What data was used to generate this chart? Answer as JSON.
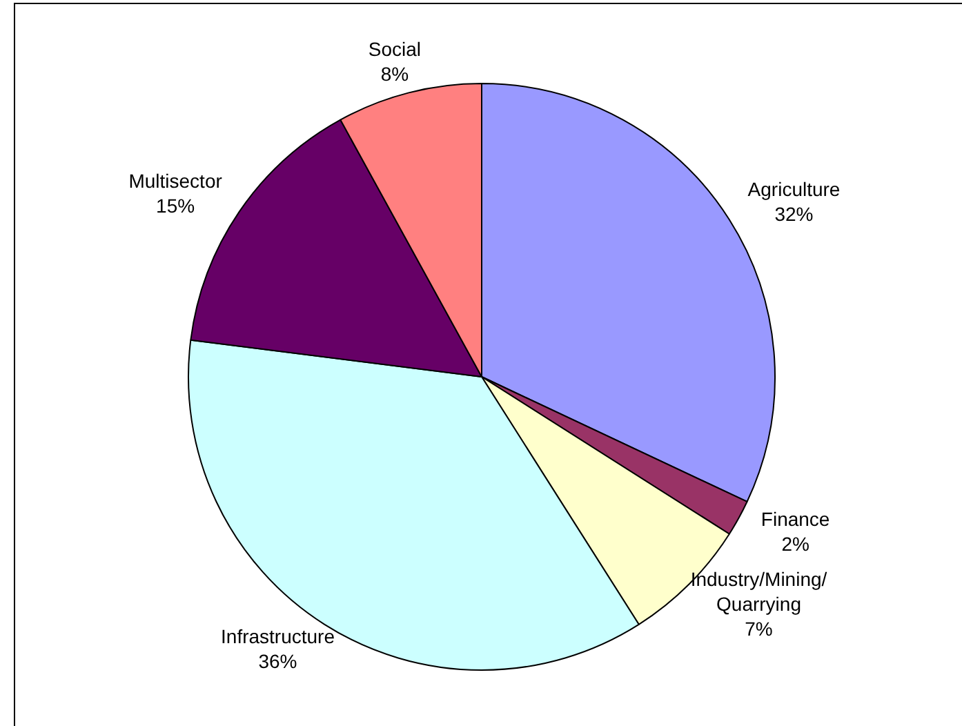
{
  "chart_data": {
    "type": "pie",
    "categories": [
      "Agriculture",
      "Finance",
      "Industry/Mining/Quarrying",
      "Infrastructure",
      "Multisector",
      "Social"
    ],
    "values": [
      32,
      2,
      7,
      36,
      15,
      8
    ],
    "colors": [
      "#9999ff",
      "#993366",
      "#ffffcc",
      "#ccffff",
      "#660066",
      "#ff8080"
    ],
    "value_labels": [
      "32%",
      "2%",
      "7%",
      "36%",
      "15%",
      "8%"
    ],
    "legend": false
  }
}
